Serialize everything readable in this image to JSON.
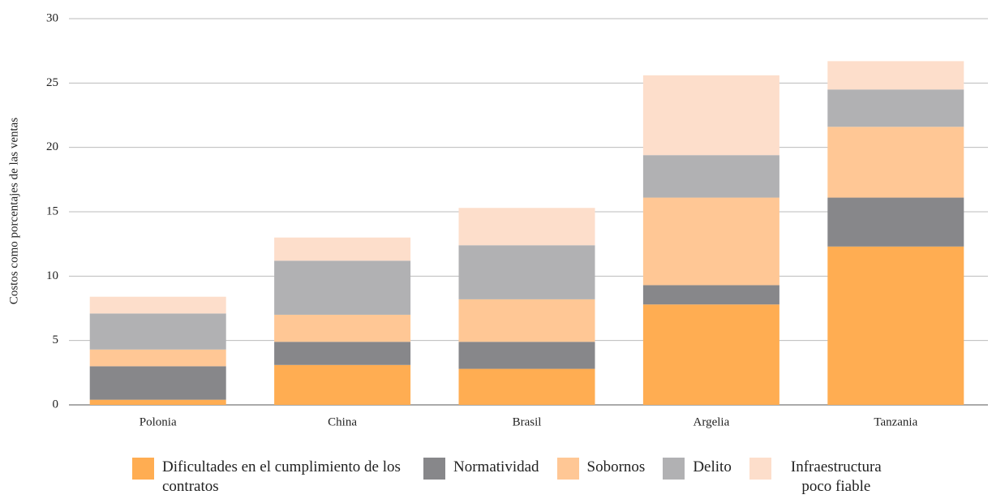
{
  "chart_data": {
    "type": "stacked_bar",
    "y_label": "Costos como porcentajes de las ventas",
    "categories": [
      "Polonia",
      "China",
      "Brasil",
      "Argelia",
      "Tanzania"
    ],
    "series": [
      {
        "name": "Dificultades en el cumplimiento de los contratos",
        "color": "#ffad52",
        "values": [
          0.4,
          3.1,
          2.8,
          7.8,
          12.3
        ]
      },
      {
        "name": "Normatividad",
        "color": "#87878a",
        "values": [
          2.6,
          1.8,
          2.1,
          1.5,
          3.8
        ]
      },
      {
        "name": "Sobornos",
        "color": "#ffc795",
        "values": [
          1.3,
          2.1,
          3.3,
          6.8,
          5.5
        ]
      },
      {
        "name": "Delito",
        "color": "#b1b1b3",
        "values": [
          2.8,
          4.2,
          4.2,
          3.3,
          2.9
        ]
      },
      {
        "name": "Infraestructura poco fiable",
        "color": "#fddecb",
        "values": [
          1.3,
          1.8,
          2.9,
          6.2,
          2.2
        ]
      }
    ],
    "ylim": [
      0,
      30
    ],
    "yticks": [
      0,
      5,
      10,
      15,
      20,
      25,
      30
    ],
    "grid": true,
    "legend": "bottom"
  }
}
